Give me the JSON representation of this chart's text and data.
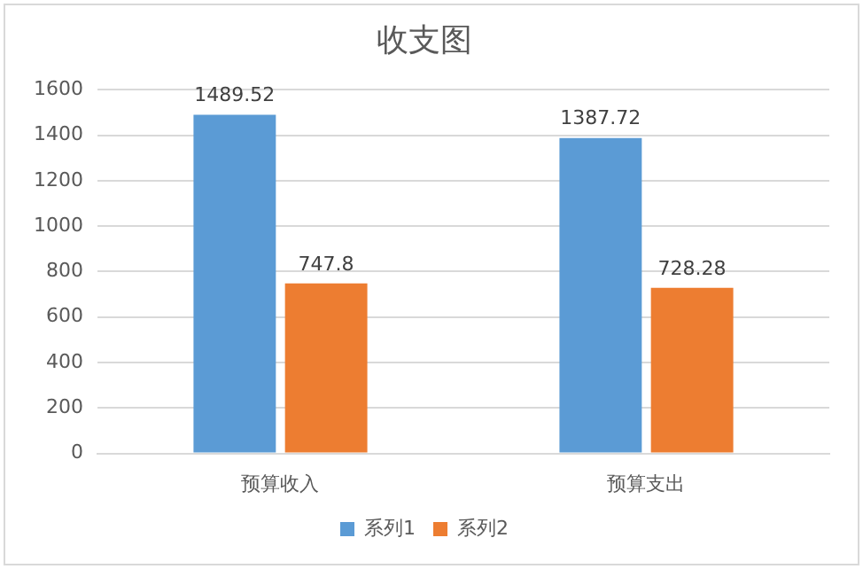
{
  "chart_data": {
    "type": "bar",
    "title": "收支图",
    "categories": [
      "预算收入",
      "预算支出"
    ],
    "series": [
      {
        "name": "系列1",
        "color": "#5b9bd5",
        "values": [
          1489.52,
          1387.72
        ]
      },
      {
        "name": "系列2",
        "color": "#ed7d31",
        "values": [
          747.8,
          728.28
        ]
      }
    ],
    "ylim": [
      0,
      1600
    ],
    "yticks": [
      0,
      200,
      400,
      600,
      800,
      1000,
      1200,
      1400,
      1600
    ],
    "grid": "y",
    "legend": "bottom",
    "data_labels": true
  }
}
